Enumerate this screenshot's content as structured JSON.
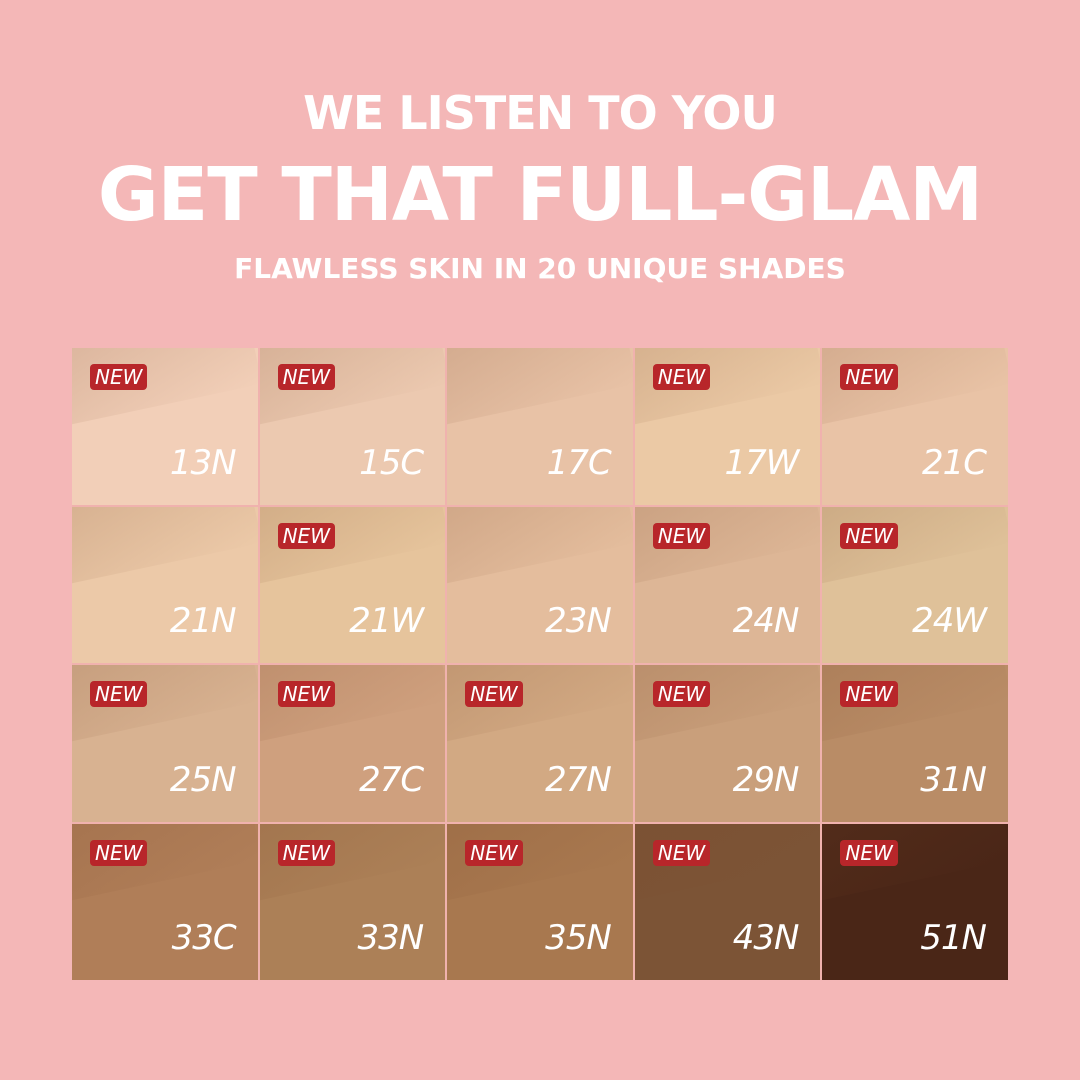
{
  "header": {
    "line1": "WE LISTEN TO YOU",
    "line2": "GET THAT FULL-GLAM",
    "line3": "FLAWLESS SKIN IN 20 UNIQUE SHADES"
  },
  "badge_label": "NEW",
  "colors": {
    "background": "#f4b7b7",
    "badge": "#b8262a"
  },
  "shades": [
    {
      "name": "13N",
      "new": true,
      "color": "#f2cfb8"
    },
    {
      "name": "15C",
      "new": true,
      "color": "#ecc9b0"
    },
    {
      "name": "17C",
      "new": false,
      "color": "#e8c2a6"
    },
    {
      "name": "17W",
      "new": true,
      "color": "#ebc9a5"
    },
    {
      "name": "21C",
      "new": true,
      "color": "#e9c3a6"
    },
    {
      "name": "21N",
      "new": false,
      "color": "#ecc9a8"
    },
    {
      "name": "21W",
      "new": true,
      "color": "#e6c49c"
    },
    {
      "name": "23N",
      "new": false,
      "color": "#e4bd9d"
    },
    {
      "name": "24N",
      "new": true,
      "color": "#ddb696"
    },
    {
      "name": "24W",
      "new": true,
      "color": "#dfc199"
    },
    {
      "name": "25N",
      "new": true,
      "color": "#d8b291"
    },
    {
      "name": "27C",
      "new": true,
      "color": "#cfa07e"
    },
    {
      "name": "27N",
      "new": true,
      "color": "#d2a983"
    },
    {
      "name": "29N",
      "new": true,
      "color": "#c99f7b"
    },
    {
      "name": "31N",
      "new": true,
      "color": "#b98c66"
    },
    {
      "name": "33C",
      "new": true,
      "color": "#b07e58"
    },
    {
      "name": "33N",
      "new": true,
      "color": "#ac8057"
    },
    {
      "name": "35N",
      "new": true,
      "color": "#a8784f"
    },
    {
      "name": "43N",
      "new": true,
      "color": "#7c5436"
    },
    {
      "name": "51N",
      "new": true,
      "color": "#4a2617"
    }
  ]
}
